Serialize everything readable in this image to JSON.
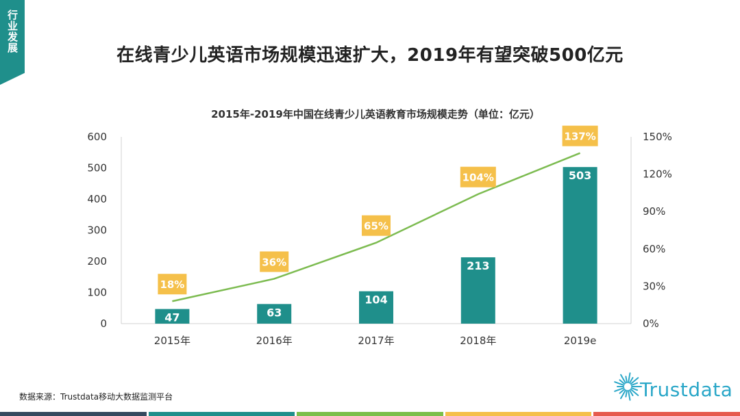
{
  "corner_tab": {
    "label": "行业发展",
    "color": "#1f8f8b"
  },
  "page_title": "在线青少儿英语市场规模迅速扩大，2019年有望突破500亿元",
  "source_note": "数据来源：Trustdata移动大数据监测平台",
  "logo": {
    "text": "Trustdata",
    "color": "#2aa7c8"
  },
  "bottom_stripe_colors": [
    "#34495e",
    "#1f8f8b",
    "#7bbf4a",
    "#f5c04a",
    "#e65a4d"
  ],
  "colors": {
    "bar": "#1f8f8b",
    "line": "#7cbb50",
    "rate_box": "#f5c04a"
  },
  "chart_data": {
    "type": "bar+line",
    "title": "2015年-2019年中国在线青少儿英语教育市场规模走势（单位：亿元）",
    "categories": [
      "2015年",
      "2016年",
      "2017年",
      "2018年",
      "2019e"
    ],
    "series": [
      {
        "type": "bar",
        "axis": "left",
        "values": [
          47,
          63,
          104,
          213,
          503
        ]
      },
      {
        "type": "line",
        "axis": "right",
        "values": [
          18,
          36,
          65,
          104,
          137
        ],
        "labels": [
          "18%",
          "36%",
          "65%",
          "104%",
          "137%"
        ]
      }
    ],
    "y_left": {
      "min": 0,
      "max": 600,
      "ticks": [
        "0",
        "100",
        "200",
        "300",
        "400",
        "500",
        "600"
      ]
    },
    "y_right": {
      "min": 0,
      "max": 150,
      "ticks": [
        "0%",
        "30%",
        "60%",
        "90%",
        "120%",
        "150%"
      ]
    },
    "grid": false,
    "legend": "none"
  }
}
